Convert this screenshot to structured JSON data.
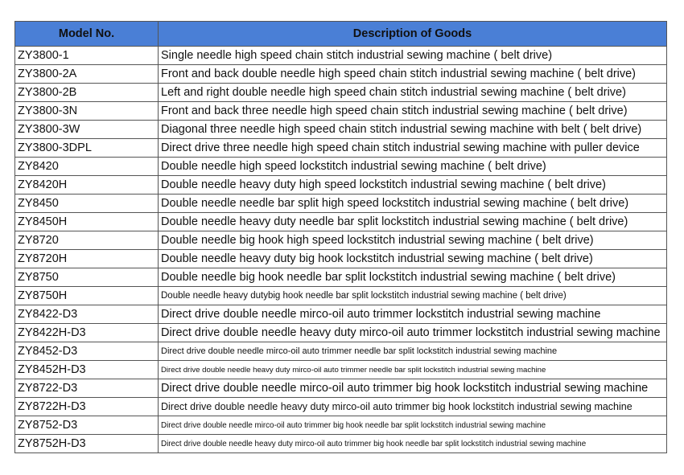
{
  "headers": {
    "model": "Model No.",
    "description": "Description of Goods"
  },
  "header_color": "#4a7fd6",
  "rows": [
    {
      "model": "ZY3800-1",
      "description": "Single needle high speed chain stitch industrial sewing machine ( belt drive)"
    },
    {
      "model": "ZY3800-2A",
      "description": "Front and back double needle high speed chain stitch industrial sewing machine  ( belt drive)"
    },
    {
      "model": "ZY3800-2B",
      "description": "Left and right double needle high speed chain stitch industrial sewing machine  ( belt drive)"
    },
    {
      "model": "ZY3800-3N",
      "description": "Front and back three needle high speed chain stitch industrial sewing machine  ( belt drive)"
    },
    {
      "model": "ZY3800-3W",
      "description": "Diagonal three needle high speed chain stitch industrial sewing machine with belt ( belt drive)"
    },
    {
      "model": "ZY3800-3DPL",
      "description": "Direct drive three needle high speed chain stitch industrial sewing machine with puller device"
    },
    {
      "model": "ZY8420",
      "description": "Double needle high speed lockstitch industrial sewing machine ( belt drive)"
    },
    {
      "model": "ZY8420H",
      "description": "Double needle heavy duty high speed lockstitch industrial sewing machine ( belt drive)"
    },
    {
      "model": "ZY8450",
      "description": "Double needle needle bar split high speed lockstitch industrial sewing machine ( belt drive)"
    },
    {
      "model": "ZY8450H",
      "description": "Double needle heavy duty needle bar split  lockstitch industrial sewing machine ( belt drive)"
    },
    {
      "model": "ZY8720",
      "description": "Double needle big hook high speed lockstitch industrial sewing machine ( belt drive)"
    },
    {
      "model": "ZY8720H",
      "description": "Double needle heavy duty big hook lockstitch industrial sewing machine ( belt drive)"
    },
    {
      "model": "ZY8750",
      "description": "Double needle big hook needle bar split  lockstitch industrial sewing machine ( belt drive)"
    },
    {
      "model": "ZY8750H",
      "description": "Double needle  heavy dutybig hook needle bar split lockstitch industrial sewing machine  ( belt drive)"
    },
    {
      "model": "ZY8422-D3",
      "description": "Direct drive double needle mirco-oil auto trimmer  lockstitch industrial sewing machine"
    },
    {
      "model": "ZY8422H-D3",
      "description": "Direct drive double needle heavy duty mirco-oil auto trimmer  lockstitch industrial sewing machine"
    },
    {
      "model": "ZY8452-D3",
      "description": "Direct drive double needle mirco-oil auto trimmer needle bar split lockstitch industrial sewing machine"
    },
    {
      "model": "ZY8452H-D3",
      "description": "Direct drive double needle heavy duty mirco-oil auto trimmer needle bar split lockstitch industrial sewing machine"
    },
    {
      "model": "ZY8722-D3",
      "description": "Direct drive double needle mirco-oil auto trimmer big hook  lockstitch industrial sewing machine"
    },
    {
      "model": "ZY8722H-D3",
      "description": "Direct drive double needle heavy duty mirco-oil auto trimmer big hook  lockstitch industrial sewing machine"
    },
    {
      "model": "ZY8752-D3",
      "description": "Direct drive double needle mirco-oil auto trimmer big hook needle bar split lockstitch industrial sewing machine"
    },
    {
      "model": "ZY8752H-D3",
      "description": "Direct drive double needle heavy duty mirco-oil auto trimmer big hook needle bar split lockstitch industrial sewing machine"
    }
  ]
}
